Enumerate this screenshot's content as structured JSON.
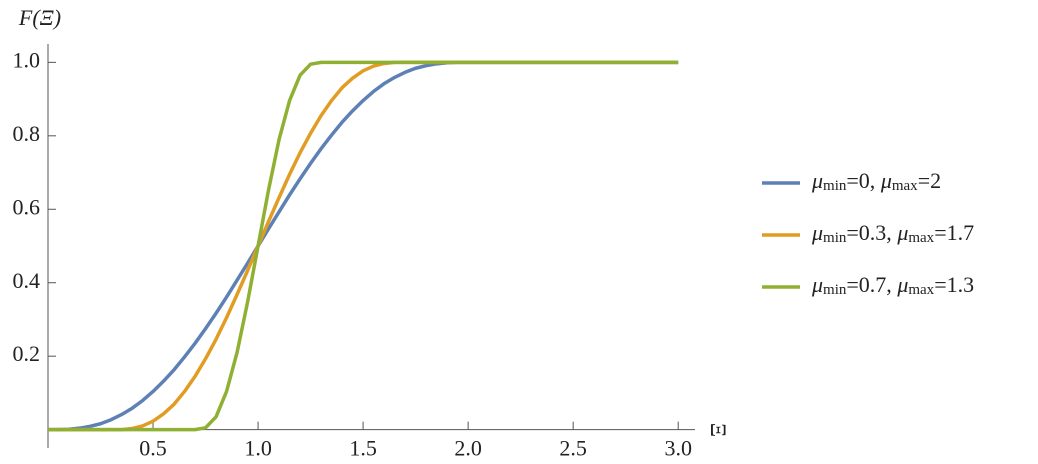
{
  "chart_data": {
    "type": "line",
    "y_label": "F(Ξ)",
    "x_label": "Ξ",
    "x": [
      0,
      0.05,
      0.1,
      0.15,
      0.2,
      0.25,
      0.3,
      0.35,
      0.4,
      0.45,
      0.5,
      0.55,
      0.6,
      0.65,
      0.7,
      0.75,
      0.8,
      0.85,
      0.9,
      0.95,
      1.0,
      1.05,
      1.1,
      1.15,
      1.2,
      1.25,
      1.3,
      1.35,
      1.4,
      1.45,
      1.5,
      1.55,
      1.6,
      1.65,
      1.7,
      1.75,
      1.8,
      1.85,
      1.9,
      1.95,
      2.0,
      2.5,
      3.0
    ],
    "series": [
      {
        "name": "μmin=0, μmax=2",
        "color": "#5e81b5",
        "values": [
          0,
          0,
          0.001,
          0.004,
          0.009,
          0.016,
          0.027,
          0.041,
          0.058,
          0.079,
          0.104,
          0.132,
          0.163,
          0.198,
          0.235,
          0.275,
          0.317,
          0.361,
          0.407,
          0.453,
          0.5,
          0.547,
          0.593,
          0.639,
          0.683,
          0.725,
          0.765,
          0.802,
          0.837,
          0.868,
          0.896,
          0.921,
          0.942,
          0.959,
          0.973,
          0.984,
          0.991,
          0.996,
          0.999,
          1,
          1,
          1,
          1
        ]
      },
      {
        "name": "μmin=0.3, μmax=1.7",
        "color": "#e19c24",
        "values": [
          0,
          0,
          0,
          0,
          0,
          0,
          0,
          0,
          0.003,
          0.01,
          0.023,
          0.043,
          0.069,
          0.104,
          0.145,
          0.193,
          0.246,
          0.305,
          0.368,
          0.433,
          0.5,
          0.567,
          0.632,
          0.695,
          0.754,
          0.807,
          0.855,
          0.896,
          0.931,
          0.957,
          0.977,
          0.99,
          0.997,
          1,
          1,
          1,
          1,
          1,
          1,
          1,
          1,
          1,
          1
        ]
      },
      {
        "name": "μmin=0.7, μmax=1.3",
        "color": "#8fb032",
        "values": [
          0,
          0,
          0,
          0,
          0,
          0,
          0,
          0,
          0,
          0,
          0,
          0,
          0,
          0,
          0,
          0.005,
          0.035,
          0.104,
          0.21,
          0.347,
          0.5,
          0.653,
          0.79,
          0.896,
          0.965,
          0.995,
          1,
          1,
          1,
          1,
          1,
          1,
          1,
          1,
          1,
          1,
          1,
          1,
          1,
          1,
          1,
          1,
          1
        ]
      }
    ],
    "xlim": [
      0,
      3.08
    ],
    "ylim": [
      -0.05,
      1.05
    ],
    "xticks": [
      0.5,
      {
        "value": 1,
        "label": "1.0"
      },
      1.5,
      {
        "value": 2,
        "label": "2.0"
      },
      2.5,
      {
        "value": 3,
        "label": "3.0"
      }
    ],
    "yticks": [
      0.2,
      0.4,
      0.6,
      0.8,
      {
        "value": 1,
        "label": "1.0"
      }
    ],
    "grid": false,
    "legend": "right"
  }
}
